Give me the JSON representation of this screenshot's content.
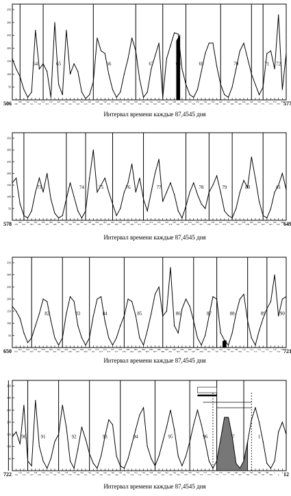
{
  "caption": "Интервал времени каждые 87,4545 дня",
  "color": "#000000",
  "chart_data": [
    {
      "type": "line",
      "xlabel": "Интервал времени каждые 87,4545 дня",
      "x_start": 506,
      "x_end": 577,
      "ylim": [
        0,
        350
      ],
      "yticks": [
        50,
        100,
        150,
        200,
        250,
        300,
        350
      ],
      "cycle_labels": [
        {
          "label": "64",
          "x": 512
        },
        {
          "label": "65",
          "x": 518
        },
        {
          "label": "66",
          "x": 531
        },
        {
          "label": "67",
          "x": 542
        },
        {
          "label": "68",
          "x": 549
        },
        {
          "label": "69",
          "x": 555
        },
        {
          "label": "70",
          "x": 564
        },
        {
          "label": "71",
          "x": 572
        },
        {
          "label": "72",
          "x": 575
        }
      ],
      "highlight_x": 549,
      "y": [
        160,
        120,
        90,
        40,
        10,
        30,
        270,
        120,
        140,
        110,
        10,
        300,
        60,
        20,
        270,
        100,
        140,
        110,
        30,
        5,
        20,
        70,
        240,
        190,
        180,
        100,
        40,
        10,
        30,
        100,
        160,
        240,
        190,
        80,
        10,
        30,
        120,
        170,
        220,
        10,
        160,
        210,
        260,
        255,
        120,
        60,
        20,
        10,
        40,
        110,
        180,
        220,
        220,
        130,
        60,
        20,
        10,
        50,
        120,
        190,
        220,
        160,
        100,
        60,
        20,
        50,
        180,
        190,
        120,
        330,
        40,
        180
      ]
    },
    {
      "type": "line",
      "xlabel": "Интервал времени каждые 87,4545 дня",
      "x_start": 578,
      "x_end": 649,
      "ylim": [
        0,
        350
      ],
      "yticks": [
        50,
        100,
        150,
        200,
        250,
        300,
        350
      ],
      "cycle_labels": [
        {
          "label": "73",
          "x": 585
        },
        {
          "label": "74",
          "x": 596
        },
        {
          "label": "75",
          "x": 601
        },
        {
          "label": "76",
          "x": 608
        },
        {
          "label": "77",
          "x": 616
        },
        {
          "label": "78",
          "x": 627
        },
        {
          "label": "79",
          "x": 633
        },
        {
          "label": "80",
          "x": 639
        },
        {
          "label": "81",
          "x": 647
        }
      ],
      "highlight_x": null,
      "y": [
        160,
        180,
        70,
        20,
        10,
        40,
        120,
        180,
        120,
        200,
        90,
        30,
        10,
        20,
        90,
        160,
        100,
        40,
        10,
        40,
        180,
        300,
        120,
        150,
        180,
        120,
        70,
        20,
        50,
        120,
        160,
        240,
        120,
        180,
        90,
        40,
        120,
        200,
        260,
        80,
        120,
        160,
        110,
        40,
        10,
        60,
        120,
        160,
        110,
        70,
        50,
        120,
        150,
        190,
        120,
        40,
        20,
        10,
        50,
        120,
        170,
        140,
        270,
        180,
        80,
        20,
        10,
        50,
        120,
        150,
        200,
        130
      ]
    },
    {
      "type": "line",
      "xlabel": "Интервал времени каждые 87,4545 дня",
      "x_start": 650,
      "x_end": 721,
      "ylim": [
        0,
        350
      ],
      "yticks": [
        50,
        100,
        150,
        200,
        250,
        300,
        350
      ],
      "cycle_labels": [
        {
          "label": "82",
          "x": 659
        },
        {
          "label": "83",
          "x": 667
        },
        {
          "label": "84",
          "x": 674
        },
        {
          "label": "85",
          "x": 683
        },
        {
          "label": "86",
          "x": 693
        },
        {
          "label": "87",
          "x": 701
        },
        {
          "label": "88",
          "x": 707
        },
        {
          "label": "89",
          "x": 715
        },
        {
          "label": "90",
          "x": 720
        }
      ],
      "highlight_x": 705,
      "y": [
        170,
        150,
        120,
        60,
        20,
        40,
        90,
        140,
        200,
        190,
        110,
        40,
        10,
        40,
        140,
        210,
        190,
        90,
        40,
        10,
        40,
        130,
        200,
        210,
        110,
        40,
        10,
        40,
        90,
        130,
        200,
        190,
        130,
        40,
        10,
        70,
        140,
        220,
        250,
        130,
        150,
        330,
        90,
        60,
        160,
        200,
        170,
        110,
        40,
        10,
        50,
        130,
        210,
        200,
        60,
        30,
        10,
        60,
        140,
        200,
        220,
        110,
        40,
        10,
        70,
        120,
        160,
        190,
        300,
        130,
        200,
        210
      ]
    },
    {
      "type": "line",
      "xlabel": "Интервал времени каждые 87,4545 дня",
      "x_start": 722,
      "x_end": 12,
      "ylim": [
        0,
        350
      ],
      "yticks": [
        50,
        100,
        150,
        200,
        250,
        300,
        350
      ],
      "cycle_labels": [
        {
          "label": "90",
          "x": 725
        },
        {
          "label": "91",
          "x": 730
        },
        {
          "label": "92",
          "x": 738
        },
        {
          "label": "93",
          "x": 746
        },
        {
          "label": "94",
          "x": 754
        },
        {
          "label": "95",
          "x": 763
        },
        {
          "label": "96",
          "x": 772
        },
        {
          "label": "97",
          "x": 779
        },
        {
          "label": "1",
          "x": 786
        }
      ],
      "highlight_range": [
        775,
        783
      ],
      "y": [
        140,
        160,
        110,
        270,
        40,
        20,
        290,
        100,
        40,
        10,
        50,
        120,
        150,
        270,
        180,
        40,
        10,
        90,
        180,
        130,
        70,
        30,
        10,
        60,
        140,
        210,
        190,
        60,
        20,
        10,
        50,
        110,
        170,
        230,
        260,
        100,
        50,
        20,
        60,
        120,
        180,
        250,
        170,
        60,
        20,
        60,
        120,
        190,
        250,
        190,
        120,
        40,
        10,
        40,
        130,
        220,
        220,
        140,
        30,
        10,
        40,
        120,
        210,
        260,
        200,
        120,
        30,
        10,
        40,
        160,
        200,
        150
      ]
    }
  ]
}
